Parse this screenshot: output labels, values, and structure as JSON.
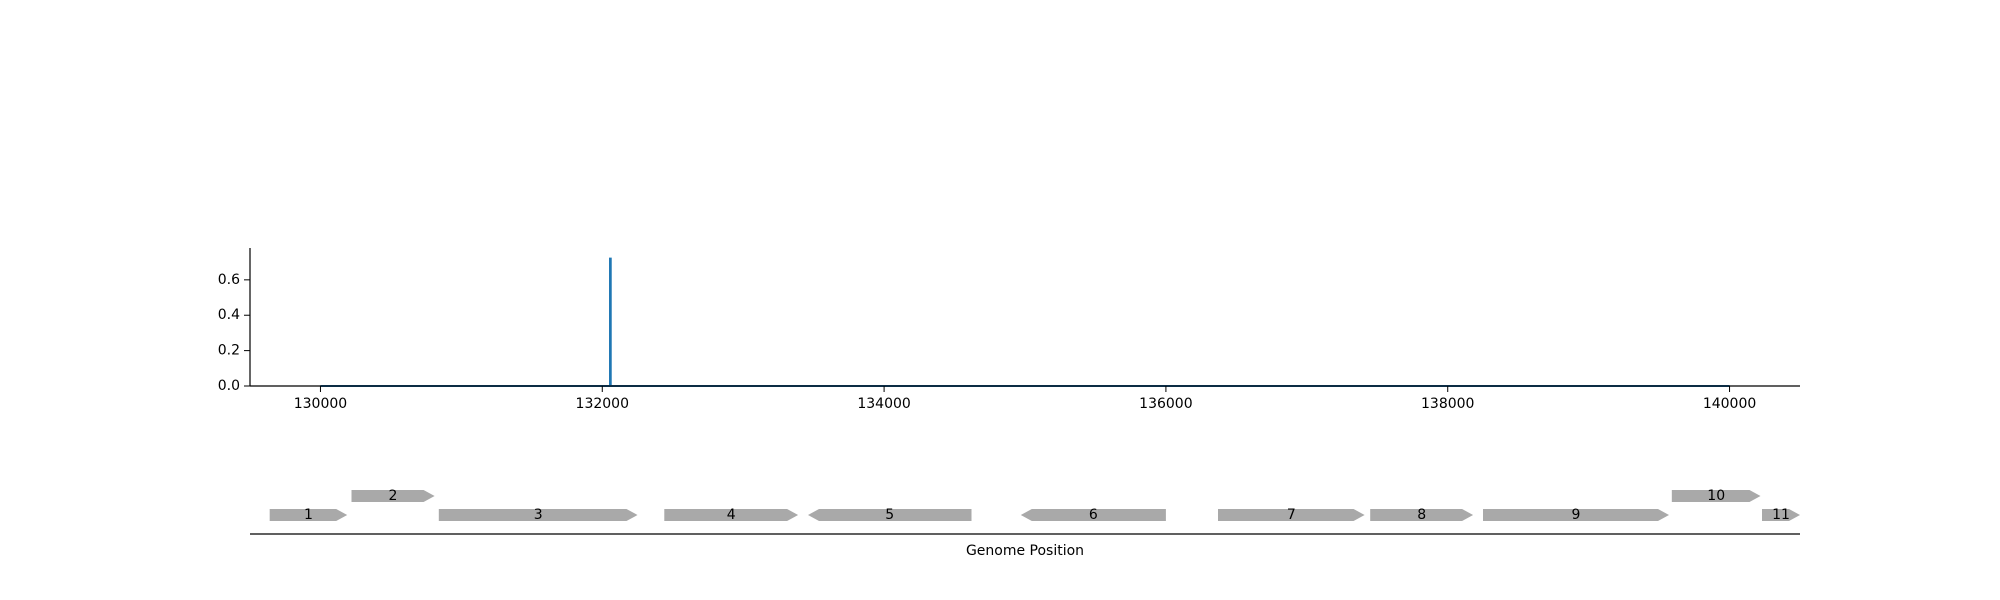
{
  "chart_data": [
    {
      "type": "line",
      "title": "",
      "xlabel": "",
      "ylabel": "",
      "xlim": [
        129500,
        140500
      ],
      "ylim": [
        0,
        0.78
      ],
      "x_ticks": [
        130000,
        132000,
        134000,
        136000,
        138000,
        140000
      ],
      "x_tick_labels": [
        "130000",
        "132000",
        "134000",
        "136000",
        "138000",
        "140000"
      ],
      "y_ticks": [
        0.0,
        0.2,
        0.4,
        0.6
      ],
      "y_tick_labels": [
        "0.0",
        "0.2",
        "0.4",
        "0.6"
      ],
      "grid": false,
      "series": [
        {
          "color": "#1f77b4",
          "x": [
            130000,
            132055,
            132055,
            132060,
            132060,
            140000
          ],
          "y": [
            0.0,
            0.0,
            0.72,
            0.72,
            0.0,
            0.0
          ]
        }
      ]
    },
    {
      "type": "gene_track",
      "xlabel": "Genome Position",
      "xlim": [
        129500,
        140500
      ],
      "color": "#a9a9a9",
      "genes": [
        {
          "label": "1",
          "start": 129640,
          "end": 130190,
          "strand": "+",
          "row": 0
        },
        {
          "label": "2",
          "start": 130220,
          "end": 130810,
          "strand": "+",
          "row": 1
        },
        {
          "label": "3",
          "start": 130840,
          "end": 132250,
          "strand": "+",
          "row": 0
        },
        {
          "label": "4",
          "start": 132440,
          "end": 133390,
          "strand": "+",
          "row": 0
        },
        {
          "label": "5",
          "start": 133460,
          "end": 134620,
          "strand": "-",
          "row": 0
        },
        {
          "label": "6",
          "start": 134970,
          "end": 136000,
          "strand": "-",
          "row": 0
        },
        {
          "label": "7",
          "start": 136370,
          "end": 137410,
          "strand": "+",
          "row": 0
        },
        {
          "label": "8",
          "start": 137450,
          "end": 138180,
          "strand": "+",
          "row": 0
        },
        {
          "label": "9",
          "start": 138250,
          "end": 139570,
          "strand": "+",
          "row": 0
        },
        {
          "label": "10",
          "start": 139590,
          "end": 140220,
          "strand": "+",
          "row": 1
        },
        {
          "label": "11",
          "start": 140230,
          "end": 140500,
          "strand": "+",
          "row": 0
        }
      ]
    }
  ]
}
